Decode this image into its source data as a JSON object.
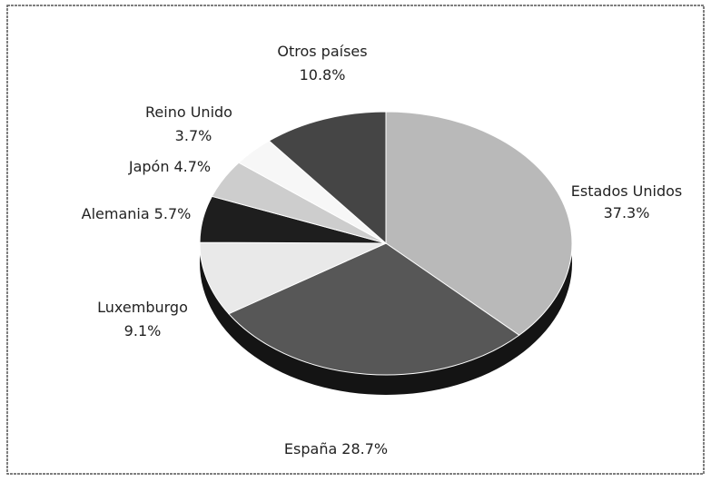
{
  "chart_data": {
    "type": "pie",
    "categories": [
      "Estados Unidos",
      "España",
      "Luxemburgo",
      "Alemania",
      "Japón",
      "Reino Unido",
      "Otros países"
    ],
    "values": [
      37.3,
      28.7,
      9.1,
      5.7,
      4.7,
      3.7,
      10.8
    ],
    "value_labels": [
      "37.3%",
      "28.7%",
      "9.1%",
      "5.7%",
      "4.7%",
      "3.7%",
      "10.8%"
    ],
    "colors": [
      "#b9b9b9",
      "#575757",
      "#e9e9e9",
      "#1e1e1e",
      "#cdcdcd",
      "#f7f7f7",
      "#454545"
    ]
  }
}
